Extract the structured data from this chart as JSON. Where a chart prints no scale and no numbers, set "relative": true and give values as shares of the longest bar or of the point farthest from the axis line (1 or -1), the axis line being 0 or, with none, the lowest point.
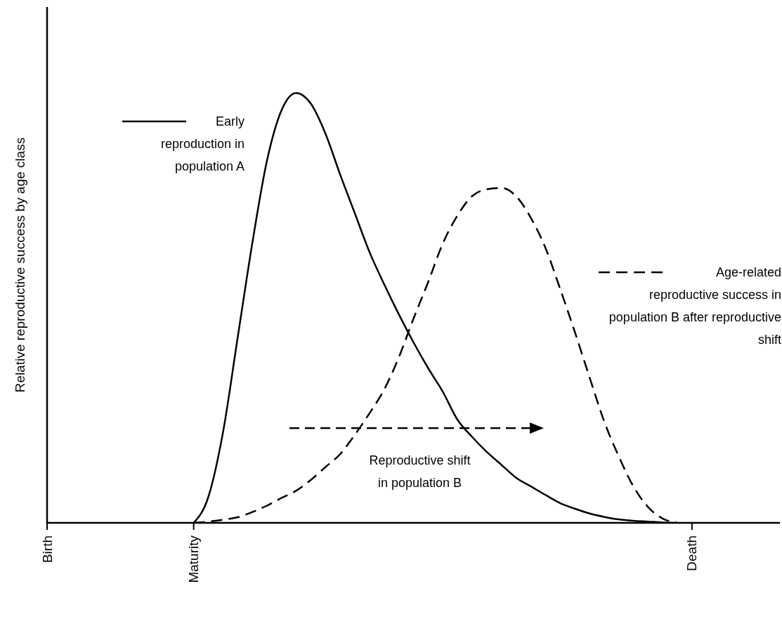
{
  "chart_data": {
    "type": "line",
    "relative": true,
    "ylabel": "Relative reproductive success by age class",
    "categories": [
      "Birth",
      null,
      null,
      null,
      null,
      null,
      null,
      null,
      null,
      null,
      "Maturity",
      null,
      null,
      null,
      null,
      null,
      null,
      null,
      null,
      null,
      null,
      null,
      null,
      null,
      null,
      null,
      null,
      null,
      null,
      null,
      null,
      null,
      null,
      null,
      null,
      null,
      null,
      null,
      null,
      null,
      null,
      null,
      null,
      null,
      "Death",
      null,
      null,
      null,
      null,
      null,
      null
    ],
    "legend": "top right",
    "marker": "none",
    "series": [
      {
        "name": "Early reproduction in population A",
        "color": "#000000",
        "line_style": "solid",
        "values": [
          null,
          null,
          null,
          null,
          null,
          null,
          null,
          null,
          null,
          null,
          0,
          0.06,
          0.21,
          0.43,
          0.65,
          0.842,
          0.96,
          1,
          0.975,
          0.905,
          0.81,
          0.72,
          0.63,
          0.555,
          0.485,
          0.42,
          0.36,
          0.305,
          0.24,
          0.2,
          0.165,
          0.135,
          0.105,
          0.085,
          0.065,
          0.046,
          0.033,
          0.022,
          0.014,
          0.008,
          0.005,
          0.003,
          0.001,
          0,
          null,
          null,
          null,
          null,
          null,
          null,
          null
        ]
      },
      {
        "name": "Age-related reproductive success in population B after reproductive shift",
        "color": "#000000",
        "line_style": "dashed",
        "values": [
          null,
          null,
          null,
          null,
          null,
          null,
          null,
          null,
          null,
          null,
          0,
          0.003,
          0.007,
          0.013,
          0.025,
          0.04,
          0.058,
          0.075,
          0.1,
          0.13,
          0.16,
          0.205,
          0.255,
          0.31,
          0.385,
          0.475,
          0.56,
          0.65,
          0.715,
          0.76,
          0.776,
          0.779,
          0.76,
          0.71,
          0.64,
          0.545,
          0.445,
          0.34,
          0.237,
          0.155,
          0.085,
          0.037,
          0.01,
          0,
          null,
          null,
          null,
          null,
          null,
          null,
          null
        ]
      }
    ],
    "annotations": [
      "Reproductive shift in population B"
    ]
  }
}
